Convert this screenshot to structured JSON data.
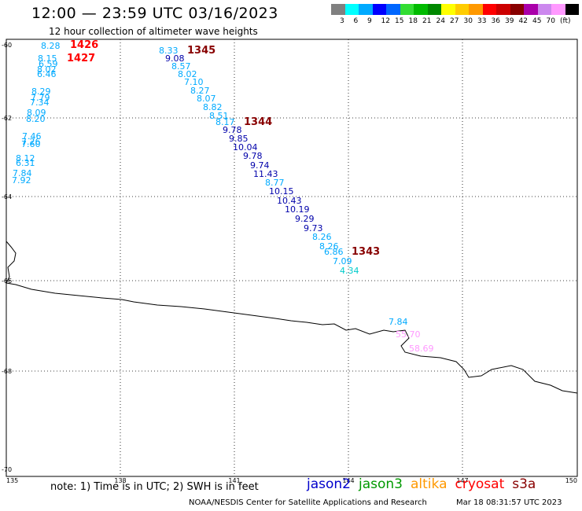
{
  "header": {
    "title": "12:00 — 23:59 UTC 03/16/2023",
    "subtitle": "12 hour collection of altimeter wave heights"
  },
  "legend": {
    "colors": [
      "#808080",
      "#00ffff",
      "#00aaff",
      "#0000ff",
      "#0066ff",
      "#33dd33",
      "#00bb00",
      "#008800",
      "#ffff00",
      "#ffcc00",
      "#ff9900",
      "#ff0000",
      "#cc0000",
      "#880000",
      "#aa00aa",
      "#cc88ee",
      "#ff99ff",
      "#000000"
    ],
    "labels": [
      "3",
      "6",
      "9",
      "12",
      "15",
      "18",
      "21",
      "24",
      "27",
      "30",
      "33",
      "36",
      "39",
      "42",
      "45",
      "70",
      "(ft)"
    ]
  },
  "axes": {
    "lat_labels": [
      "-60",
      "-62",
      "-64",
      "-66",
      "-68",
      "-70"
    ],
    "lon_labels": [
      "135",
      "138",
      "141",
      "144",
      "147",
      "150"
    ]
  },
  "passes": [
    {
      "label": "1426",
      "color": "#ff0000"
    },
    {
      "label": "1427",
      "color": "#ff0000"
    },
    {
      "label": "1345",
      "color": "#880000"
    },
    {
      "label": "1344",
      "color": "#880000"
    },
    {
      "label": "1343",
      "color": "#880000"
    }
  ],
  "track_west": [
    {
      "v": "8.28",
      "c": "#00aaff"
    },
    {
      "v": "8.15",
      "c": "#00aaff"
    },
    {
      "v": "6.59",
      "c": "#00aaff"
    },
    {
      "v": "8.02",
      "c": "#00aaff"
    },
    {
      "v": "6.46",
      "c": "#00aaff"
    },
    {
      "v": "8.29",
      "c": "#00aaff"
    },
    {
      "v": "7.79",
      "c": "#00aaff"
    },
    {
      "v": "7.34",
      "c": "#00aaff"
    },
    {
      "v": "8.09",
      "c": "#00aaff"
    },
    {
      "v": "8.20",
      "c": "#00aaff"
    },
    {
      "v": "7.46",
      "c": "#00aaff"
    },
    {
      "v": "7.26",
      "c": "#00aaff"
    },
    {
      "v": "7.60",
      "c": "#00aaff"
    },
    {
      "v": "8.12",
      "c": "#00aaff"
    },
    {
      "v": "6.31",
      "c": "#00aaff"
    },
    {
      "v": "7.84",
      "c": "#00aaff"
    },
    {
      "v": "7.92",
      "c": "#00aaff"
    }
  ],
  "track_main": [
    {
      "v": "8.33",
      "c": "#00aaff"
    },
    {
      "v": "9.08",
      "c": "#0000aa"
    },
    {
      "v": "8.57",
      "c": "#00aaff"
    },
    {
      "v": "8.02",
      "c": "#00aaff"
    },
    {
      "v": "7.10",
      "c": "#00aaff"
    },
    {
      "v": "8.27",
      "c": "#00aaff"
    },
    {
      "v": "8.07",
      "c": "#00aaff"
    },
    {
      "v": "8.82",
      "c": "#00aaff"
    },
    {
      "v": "8.51",
      "c": "#00aaff"
    },
    {
      "v": "8.17",
      "c": "#00aaff"
    },
    {
      "v": "9.78",
      "c": "#0000aa"
    },
    {
      "v": "9.85",
      "c": "#0000aa"
    },
    {
      "v": "10.04",
      "c": "#0000aa"
    },
    {
      "v": "9.78",
      "c": "#0000aa"
    },
    {
      "v": "9.74",
      "c": "#0000aa"
    },
    {
      "v": "11.43",
      "c": "#0000aa"
    },
    {
      "v": "8.77",
      "c": "#00aaff"
    },
    {
      "v": "10.15",
      "c": "#0000aa"
    },
    {
      "v": "10.43",
      "c": "#0000aa"
    },
    {
      "v": "10.19",
      "c": "#0000aa"
    },
    {
      "v": "9.29",
      "c": "#0000aa"
    },
    {
      "v": "9.73",
      "c": "#0000aa"
    },
    {
      "v": "8.26",
      "c": "#00aaff"
    },
    {
      "v": "8.26",
      "c": "#00aaff"
    },
    {
      "v": "6.86",
      "c": "#00aaff"
    },
    {
      "v": "7.09",
      "c": "#00aaff"
    },
    {
      "v": "4.34",
      "c": "#00cccc"
    }
  ],
  "track_coast": [
    {
      "v": "7.84",
      "c": "#00aaff"
    },
    {
      "v": "55.70",
      "c": "#ff99ff"
    },
    {
      "v": "58.69",
      "c": "#ff99ff"
    }
  ],
  "footer": {
    "note": "note:  1) Time is in UTC;  2) SWH is in feet",
    "satellites": [
      {
        "name": "jason2",
        "color": "#0000cc"
      },
      {
        "name": "jason3",
        "color": "#009900"
      },
      {
        "name": "altika",
        "color": "#ff9900"
      },
      {
        "name": "cryosat",
        "color": "#ff0000"
      },
      {
        "name": "s3a",
        "color": "#880000"
      }
    ],
    "credit": "NOAA/NESDIS Center for Satellite Applications and Research",
    "timestamp": "Mar 18 08:31:57 UTC 2023"
  }
}
